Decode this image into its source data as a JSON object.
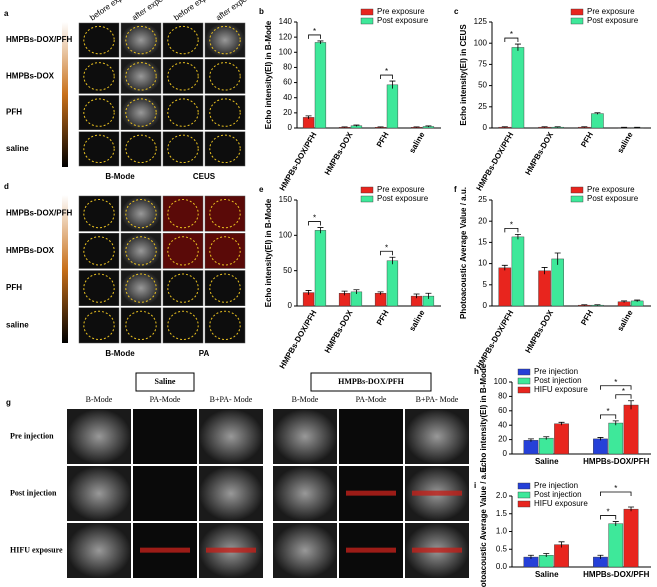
{
  "chart_data": [
    {
      "panel": "b",
      "type": "bar",
      "y_label": "Echo intensity(EI) in B-Mode",
      "categories": [
        "HMPBs-DOX/PFH",
        "HMPBs-DOX",
        "PFH",
        "saline"
      ],
      "series": [
        {
          "name": "Pre exposure",
          "color": "#e8251e",
          "values": [
            14,
            1,
            1,
            1
          ],
          "errors": [
            2,
            0.5,
            0.5,
            0.5
          ]
        },
        {
          "name": "Post exposure",
          "color": "#3ee89a",
          "values": [
            113,
            3,
            57,
            2
          ],
          "errors": [
            2,
            1,
            5,
            0.8
          ]
        }
      ],
      "ylim": [
        0,
        140
      ],
      "yticks": [
        0,
        20,
        40,
        60,
        80,
        100,
        120,
        140
      ],
      "annotations": [
        {
          "label": "*",
          "category": "HMPBs-DOX/PFH",
          "from": "Pre exposure",
          "to": "Post exposure"
        },
        {
          "label": "*",
          "category": "PFH",
          "from": "Pre exposure",
          "to": "Post exposure"
        }
      ]
    },
    {
      "panel": "c",
      "type": "bar",
      "y_label": "Echo intensity(EI) in CEUS",
      "categories": [
        "HMPBs-DOX/PFH",
        "HMPBs-DOX",
        "PFH",
        "saline"
      ],
      "series": [
        {
          "name": "Pre exposure",
          "color": "#e8251e",
          "values": [
            1,
            1,
            1,
            0.5
          ],
          "errors": [
            0.5,
            0.5,
            0.5,
            0.3
          ]
        },
        {
          "name": "Post exposure",
          "color": "#3ee89a",
          "values": [
            95,
            1,
            17,
            0.5
          ],
          "errors": [
            4,
            0.5,
            1,
            0.3
          ]
        }
      ],
      "ylim": [
        0,
        125
      ],
      "yticks": [
        0,
        25,
        50,
        75,
        100,
        125
      ],
      "annotations": [
        {
          "label": "*",
          "category": "HMPBs-DOX/PFH",
          "from": "Pre exposure",
          "to": "Post exposure"
        }
      ]
    },
    {
      "panel": "e",
      "type": "bar",
      "y_label": "Echo intensity(EI) in B-Mode",
      "categories": [
        "HMPBs-DOX/PFH",
        "HMPBs-DOX",
        "PFH",
        "saline"
      ],
      "series": [
        {
          "name": "Pre exposure",
          "color": "#e8251e",
          "values": [
            19,
            18,
            18,
            14
          ],
          "errors": [
            3,
            3,
            2,
            3
          ]
        },
        {
          "name": "Post exposure",
          "color": "#3ee89a",
          "values": [
            107,
            20,
            64,
            14
          ],
          "errors": [
            4,
            3,
            5,
            4
          ]
        }
      ],
      "ylim": [
        0,
        150
      ],
      "yticks": [
        0,
        50,
        100,
        150
      ],
      "annotations": [
        {
          "label": "*",
          "category": "HMPBs-DOX/PFH",
          "from": "Pre exposure",
          "to": "Post exposure"
        },
        {
          "label": "*",
          "category": "PFH",
          "from": "Pre exposure",
          "to": "Post exposure"
        }
      ]
    },
    {
      "panel": "f",
      "type": "bar",
      "y_label": "Photoacoustic Average Value / a.u.",
      "categories": [
        "HMPBs-DOX/PFH",
        "HMPBs-DOX",
        "PFH",
        "saline"
      ],
      "series": [
        {
          "name": "Pre exposure",
          "color": "#e8251e",
          "values": [
            9,
            8.3,
            0.2,
            1
          ],
          "errors": [
            0.6,
            0.8,
            0.1,
            0.2
          ]
        },
        {
          "name": "Post exposure",
          "color": "#3ee89a",
          "values": [
            16.3,
            11.1,
            0.2,
            1.2
          ],
          "errors": [
            0.6,
            1.4,
            0.1,
            0.2
          ]
        }
      ],
      "ylim": [
        0,
        25
      ],
      "yticks": [
        0,
        5,
        10,
        15,
        20,
        25
      ],
      "annotations": [
        {
          "label": "*",
          "category": "HMPBs-DOX/PFH",
          "from": "Pre exposure",
          "to": "Post exposure"
        }
      ]
    },
    {
      "panel": "h",
      "type": "bar",
      "y_label": "Echo intensity(EI) in B-Mode",
      "categories": [
        "Saline",
        "HMPBs-DOX/PFH"
      ],
      "series": [
        {
          "name": "Pre injection",
          "color": "#2540d8",
          "values": [
            19,
            21
          ],
          "errors": [
            2,
            2
          ]
        },
        {
          "name": "Post injection",
          "color": "#3ee89a",
          "values": [
            22,
            43
          ],
          "errors": [
            2,
            3
          ]
        },
        {
          "name": "HIFU exposure",
          "color": "#e8251e",
          "values": [
            42,
            68
          ],
          "errors": [
            2,
            6
          ]
        }
      ],
      "ylim": [
        0,
        100
      ],
      "yticks": [
        0,
        20,
        40,
        60,
        80,
        100
      ],
      "annotations": [
        {
          "label": "*",
          "category": "HMPBs-DOX/PFH",
          "from": "Pre injection",
          "to": "Post injection"
        },
        {
          "label": "*",
          "category": "HMPBs-DOX/PFH",
          "from": "Post injection",
          "to": "HIFU exposure"
        },
        {
          "label": "*",
          "category": "HMPBs-DOX/PFH",
          "from": "Pre injection",
          "to": "HIFU exposure"
        }
      ]
    },
    {
      "panel": "i",
      "type": "bar",
      "y_label": "Photoacoustic Average Value / a.u.",
      "categories": [
        "Saline",
        "HMPBs-DOX/PFH"
      ],
      "series": [
        {
          "name": "Pre injection",
          "color": "#2540d8",
          "values": [
            0.28,
            0.28
          ],
          "errors": [
            0.05,
            0.05
          ]
        },
        {
          "name": "Post injection",
          "color": "#3ee89a",
          "values": [
            0.33,
            1.22
          ],
          "errors": [
            0.05,
            0.06
          ]
        },
        {
          "name": "HIFU exposure",
          "color": "#e8251e",
          "values": [
            0.63,
            1.63
          ],
          "errors": [
            0.08,
            0.06
          ]
        }
      ],
      "ylim": [
        0,
        2
      ],
      "yticks": [
        {
          "value": 0,
          "label": "0.0"
        },
        {
          "value": 0.5,
          "label": "0.5"
        },
        {
          "value": 1,
          "label": "1.0"
        },
        {
          "value": 1.5,
          "label": "1.5"
        },
        {
          "value": 2,
          "label": "2.0"
        }
      ],
      "annotations": [
        {
          "label": "*",
          "category": "HMPBs-DOX/PFH",
          "from": "Pre injection",
          "to": "Post injection"
        },
        {
          "label": "*",
          "category": "HMPBs-DOX/PFH",
          "from": "Pre injection",
          "to": "HIFU exposure"
        }
      ]
    }
  ],
  "image_panels": [
    {
      "panel": "a",
      "rows": [
        "HMPBs-DOX/PFH",
        "HMPBs-DOX",
        "PFH",
        "saline"
      ],
      "columns": [
        "before exposure",
        "after exposure",
        "before exposure",
        "after exposure"
      ],
      "footer": [
        "B-Mode",
        "CEUS"
      ]
    },
    {
      "panel": "d",
      "rows": [
        "HMPBs-DOX/PFH",
        "HMPBs-DOX",
        "PFH",
        "saline"
      ],
      "footer": [
        "B-Mode",
        "PA"
      ]
    },
    {
      "panel": "g",
      "groups": [
        "Saline",
        "HMPBs-DOX/PFH"
      ],
      "columns": [
        "B-Mode",
        "PA-Mode",
        "B+PA- Mode",
        "B-Mode",
        "PA-Mode",
        "B+PA- Mode"
      ],
      "rows": [
        "Pre injection",
        "Post injection",
        "HIFU exposure"
      ]
    }
  ]
}
